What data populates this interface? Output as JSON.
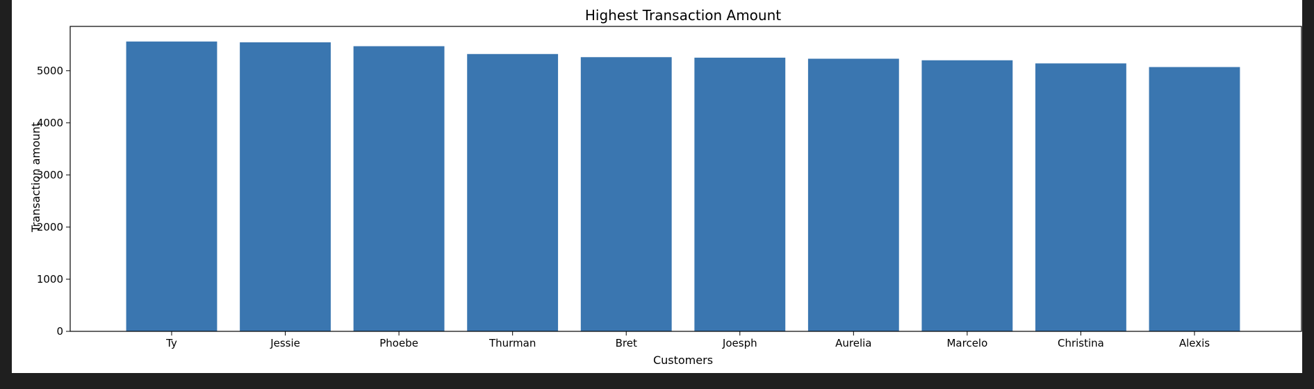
{
  "chart_data": {
    "type": "bar",
    "title": "Highest Transaction Amount",
    "xlabel": "Customers",
    "ylabel": "Transaction amount",
    "categories": [
      "Ty",
      "Jessie",
      "Phoebe",
      "Thurman",
      "Bret",
      "Joesph",
      "Aurelia",
      "Marcelo",
      "Christina",
      "Alexis"
    ],
    "values": [
      5560,
      5545,
      5470,
      5320,
      5260,
      5250,
      5230,
      5200,
      5140,
      5070
    ],
    "ylim": [
      0,
      5850
    ],
    "yticks": [
      0,
      1000,
      2000,
      3000,
      4000,
      5000
    ],
    "grid": false,
    "bar_color": "#3a76b0"
  }
}
